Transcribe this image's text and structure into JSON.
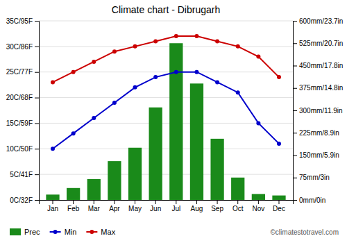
{
  "chart_data": {
    "type": "combo",
    "title": "Climate chart - Dibrugarh",
    "categories": [
      "Jan",
      "Feb",
      "Mar",
      "Apr",
      "May",
      "Jun",
      "Jul",
      "Aug",
      "Sep",
      "Oct",
      "Nov",
      "Dec"
    ],
    "series": [
      {
        "name": "Prec",
        "type": "bar",
        "color": "#1a8a1a",
        "axis": "y2",
        "values": [
          18,
          40,
          70,
          130,
          175,
          310,
          525,
          390,
          205,
          75,
          20,
          15
        ]
      },
      {
        "name": "Min",
        "type": "line",
        "color": "#0000cc",
        "marker": "circle",
        "values": [
          10,
          13,
          16,
          19,
          22,
          24,
          25,
          25,
          23,
          21,
          15,
          11
        ]
      },
      {
        "name": "Max",
        "type": "line",
        "color": "#cc0000",
        "marker": "circle",
        "values": [
          23,
          25,
          27,
          29,
          30,
          31,
          32,
          32,
          31,
          30,
          28,
          24
        ]
      }
    ],
    "ylim": [
      0,
      35
    ],
    "yticks": [
      {
        "value": 0,
        "label": "0C/32F"
      },
      {
        "value": 5,
        "label": "5C/41F"
      },
      {
        "value": 10,
        "label": "10C/50F"
      },
      {
        "value": 15,
        "label": "15C/59F"
      },
      {
        "value": 20,
        "label": "20C/68F"
      },
      {
        "value": 25,
        "label": "25C/77F"
      },
      {
        "value": 30,
        "label": "30C/86F"
      },
      {
        "value": 35,
        "label": "35C/95F"
      }
    ],
    "y2lim": [
      0,
      600
    ],
    "y2ticks": [
      {
        "value": 0,
        "label": "0mm/0in"
      },
      {
        "value": 75,
        "label": "75mm/3in"
      },
      {
        "value": 150,
        "label": "150mm/5.9in"
      },
      {
        "value": 225,
        "label": "225mm/8.9in"
      },
      {
        "value": 300,
        "label": "300mm/11.9in"
      },
      {
        "value": 375,
        "label": "375mm/14.8in"
      },
      {
        "value": 450,
        "label": "450mm/17.8in"
      },
      {
        "value": 525,
        "label": "525mm/20.7in"
      },
      {
        "value": 600,
        "label": "600mm/23.7in"
      }
    ],
    "grid": true,
    "legend": "bottom-left",
    "annotations": [
      "©climatestotravel.com"
    ]
  }
}
